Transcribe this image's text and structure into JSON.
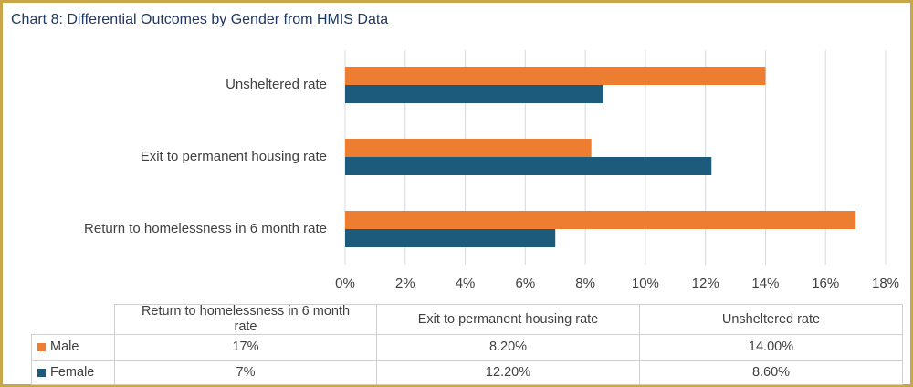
{
  "chart_data": {
    "type": "barh",
    "title": "Chart 8: Differential Outcomes by Gender from HMIS Data",
    "categories": [
      "Return to homelessness in 6 month rate",
      "Exit to permanent housing rate",
      "Unsheltered rate"
    ],
    "series": [
      {
        "name": "Male",
        "color": "#ed7d31",
        "values": [
          17,
          8.2,
          14
        ],
        "value_labels": [
          "17%",
          "8.20%",
          "14.00%"
        ]
      },
      {
        "name": "Female",
        "color": "#1d5b7c",
        "values": [
          7,
          12.2,
          8.6
        ],
        "value_labels": [
          "7%",
          "12.20%",
          "8.60%"
        ]
      }
    ],
    "xlim": [
      0,
      18
    ],
    "xticks": [
      {
        "value": 0,
        "label": "0%"
      },
      {
        "value": 2,
        "label": "2%"
      },
      {
        "value": 4,
        "label": "4%"
      },
      {
        "value": 6,
        "label": "6%"
      },
      {
        "value": 8,
        "label": "8%"
      },
      {
        "value": 10,
        "label": "10%"
      },
      {
        "value": 12,
        "label": "12%"
      },
      {
        "value": 14,
        "label": "14%"
      },
      {
        "value": 16,
        "label": "16%"
      },
      {
        "value": 18,
        "label": "18%"
      }
    ],
    "grid": true
  }
}
